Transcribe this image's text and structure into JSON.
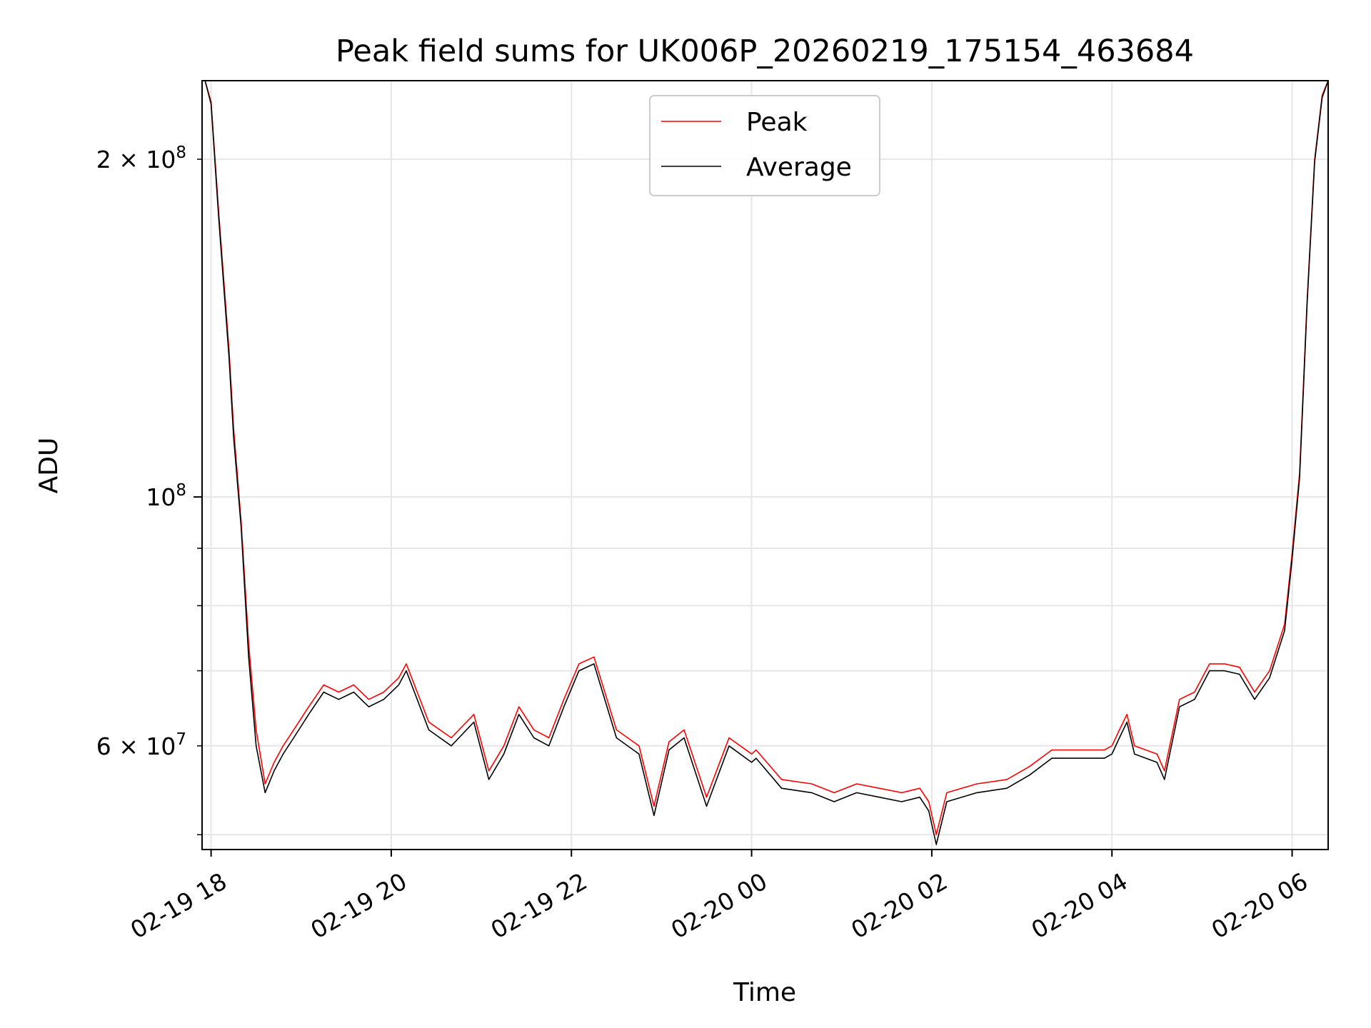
{
  "chart_data": {
    "type": "line",
    "title": "Peak field sums for UK006P_20260219_175154_463684",
    "xlabel": "Time",
    "ylabel": "ADU",
    "x_axis": {
      "type": "datetime",
      "range": [
        "2026-02-19 17:54",
        "2026-02-20 06:24"
      ],
      "ticks": [
        {
          "value": "2026-02-19 18:00",
          "label": "02-19 18"
        },
        {
          "value": "2026-02-19 20:00",
          "label": "02-19 20"
        },
        {
          "value": "2026-02-19 22:00",
          "label": "02-19 22"
        },
        {
          "value": "2026-02-20 00:00",
          "label": "02-20 00"
        },
        {
          "value": "2026-02-20 02:00",
          "label": "02-20 02"
        },
        {
          "value": "2026-02-20 04:00",
          "label": "02-20 04"
        },
        {
          "value": "2026-02-20 06:00",
          "label": "02-20 06"
        }
      ]
    },
    "y_axis": {
      "scale": "log",
      "range": [
        48500000,
        235000000
      ],
      "major_ticks": [
        {
          "value": 100000000,
          "label": "10^8"
        }
      ],
      "minor_ticks": [
        {
          "value": 50000000
        },
        {
          "value": 60000000,
          "label": "6 × 10^7"
        },
        {
          "value": 70000000
        },
        {
          "value": 80000000
        },
        {
          "value": 90000000
        },
        {
          "value": 200000000,
          "label": "2 × 10^8"
        }
      ]
    },
    "grid": true,
    "legend_position": "top-center",
    "series": [
      {
        "name": "Peak",
        "color": "#ff0000",
        "x": [
          "2026-02-19 17:54",
          "2026-02-19 17:56",
          "2026-02-19 18:00",
          "2026-02-19 18:05",
          "2026-02-19 18:12",
          "2026-02-19 18:15",
          "2026-02-19 18:20",
          "2026-02-19 18:25",
          "2026-02-19 18:30",
          "2026-02-19 18:36",
          "2026-02-19 18:42",
          "2026-02-19 18:48",
          "2026-02-19 18:55",
          "2026-02-19 19:05",
          "2026-02-19 19:15",
          "2026-02-19 19:25",
          "2026-02-19 19:35",
          "2026-02-19 19:45",
          "2026-02-19 19:55",
          "2026-02-19 20:05",
          "2026-02-19 20:10",
          "2026-02-19 20:25",
          "2026-02-19 20:40",
          "2026-02-19 20:55",
          "2026-02-19 21:05",
          "2026-02-19 21:15",
          "2026-02-19 21:25",
          "2026-02-19 21:35",
          "2026-02-19 21:45",
          "2026-02-19 21:55",
          "2026-02-19 22:05",
          "2026-02-19 22:15",
          "2026-02-19 22:30",
          "2026-02-19 22:45",
          "2026-02-19 22:55",
          "2026-02-19 23:05",
          "2026-02-19 23:15",
          "2026-02-19 23:30",
          "2026-02-19 23:45",
          "2026-02-20 00:00",
          "2026-02-20 00:03",
          "2026-02-20 00:20",
          "2026-02-20 00:40",
          "2026-02-20 00:55",
          "2026-02-20 01:10",
          "2026-02-20 01:25",
          "2026-02-20 01:40",
          "2026-02-20 01:52",
          "2026-02-20 01:58",
          "2026-02-20 02:03",
          "2026-02-20 02:10",
          "2026-02-20 02:30",
          "2026-02-20 02:50",
          "2026-02-20 03:05",
          "2026-02-20 03:20",
          "2026-02-20 03:40",
          "2026-02-20 03:55",
          "2026-02-20 04:00",
          "2026-02-20 04:05",
          "2026-02-20 04:10",
          "2026-02-20 04:15",
          "2026-02-20 04:30",
          "2026-02-20 04:35",
          "2026-02-20 04:45",
          "2026-02-20 04:55",
          "2026-02-20 05:05",
          "2026-02-20 05:15",
          "2026-02-20 05:25",
          "2026-02-20 05:35",
          "2026-02-20 05:45",
          "2026-02-20 05:55",
          "2026-02-20 06:00",
          "2026-02-20 06:05",
          "2026-02-20 06:10",
          "2026-02-20 06:15",
          "2026-02-20 06:20",
          "2026-02-20 06:24"
        ],
        "y": [
          235000000,
          235000000,
          225000000,
          180000000,
          135000000,
          115000000,
          95000000,
          74000000,
          62000000,
          55500000,
          58000000,
          60000000,
          62000000,
          65000000,
          68000000,
          67000000,
          68000000,
          66000000,
          67000000,
          69000000,
          71000000,
          63000000,
          61000000,
          64000000,
          57000000,
          60000000,
          65000000,
          62000000,
          61000000,
          66000000,
          71000000,
          72000000,
          62000000,
          60000000,
          53000000,
          60500000,
          62000000,
          54000000,
          61000000,
          59000000,
          59500000,
          56000000,
          55500000,
          54500000,
          55500000,
          55000000,
          54500000,
          55000000,
          53500000,
          50000000,
          54500000,
          55500000,
          56000000,
          57500000,
          59500000,
          59500000,
          59500000,
          60000000,
          62000000,
          64000000,
          60000000,
          59000000,
          57000000,
          66000000,
          67000000,
          71000000,
          71000000,
          70500000,
          67000000,
          70000000,
          77000000,
          89000000,
          105000000,
          150000000,
          200000000,
          228000000,
          235000000
        ]
      },
      {
        "name": "Average",
        "color": "#000000",
        "x": [
          "2026-02-19 17:54",
          "2026-02-19 17:56",
          "2026-02-19 18:00",
          "2026-02-19 18:05",
          "2026-02-19 18:12",
          "2026-02-19 18:15",
          "2026-02-19 18:20",
          "2026-02-19 18:25",
          "2026-02-19 18:30",
          "2026-02-19 18:36",
          "2026-02-19 18:42",
          "2026-02-19 18:48",
          "2026-02-19 18:55",
          "2026-02-19 19:05",
          "2026-02-19 19:15",
          "2026-02-19 19:25",
          "2026-02-19 19:35",
          "2026-02-19 19:45",
          "2026-02-19 19:55",
          "2026-02-19 20:05",
          "2026-02-19 20:10",
          "2026-02-19 20:25",
          "2026-02-19 20:40",
          "2026-02-19 20:55",
          "2026-02-19 21:05",
          "2026-02-19 21:15",
          "2026-02-19 21:25",
          "2026-02-19 21:35",
          "2026-02-19 21:45",
          "2026-02-19 21:55",
          "2026-02-19 22:05",
          "2026-02-19 22:15",
          "2026-02-19 22:30",
          "2026-02-19 22:45",
          "2026-02-19 22:55",
          "2026-02-19 23:05",
          "2026-02-19 23:15",
          "2026-02-19 23:30",
          "2026-02-19 23:45",
          "2026-02-20 00:00",
          "2026-02-20 00:03",
          "2026-02-20 00:20",
          "2026-02-20 00:40",
          "2026-02-20 00:55",
          "2026-02-20 01:10",
          "2026-02-20 01:25",
          "2026-02-20 01:40",
          "2026-02-20 01:52",
          "2026-02-20 01:58",
          "2026-02-20 02:03",
          "2026-02-20 02:10",
          "2026-02-20 02:30",
          "2026-02-20 02:50",
          "2026-02-20 03:05",
          "2026-02-20 03:20",
          "2026-02-20 03:40",
          "2026-02-20 03:55",
          "2026-02-20 04:00",
          "2026-02-20 04:05",
          "2026-02-20 04:10",
          "2026-02-20 04:15",
          "2026-02-20 04:30",
          "2026-02-20 04:35",
          "2026-02-20 04:45",
          "2026-02-20 04:55",
          "2026-02-20 05:05",
          "2026-02-20 05:15",
          "2026-02-20 05:25",
          "2026-02-20 05:35",
          "2026-02-20 05:45",
          "2026-02-20 05:55",
          "2026-02-20 06:00",
          "2026-02-20 06:05",
          "2026-02-20 06:10",
          "2026-02-20 06:15",
          "2026-02-20 06:20",
          "2026-02-20 06:24"
        ],
        "y": [
          235000000,
          235000000,
          224000000,
          178000000,
          133000000,
          113000000,
          94000000,
          72000000,
          60000000,
          54500000,
          57000000,
          59000000,
          61000000,
          64000000,
          67000000,
          66000000,
          67000000,
          65000000,
          66000000,
          68000000,
          70000000,
          62000000,
          60000000,
          63000000,
          56000000,
          59000000,
          64000000,
          61000000,
          60000000,
          65000000,
          70000000,
          71000000,
          61000000,
          59000000,
          52000000,
          59500000,
          61000000,
          53000000,
          60000000,
          58000000,
          58500000,
          55000000,
          54500000,
          53500000,
          54500000,
          54000000,
          53500000,
          54000000,
          52500000,
          49000000,
          53500000,
          54500000,
          55000000,
          56500000,
          58500000,
          58500000,
          58500000,
          59000000,
          61000000,
          63000000,
          59000000,
          58000000,
          56000000,
          65000000,
          66000000,
          70000000,
          70000000,
          69500000,
          66000000,
          69000000,
          76000000,
          88000000,
          104000000,
          149000000,
          199000000,
          227000000,
          235000000
        ]
      }
    ],
    "colors": {
      "grid": "#e6e6e6",
      "axes": "#000000"
    }
  }
}
